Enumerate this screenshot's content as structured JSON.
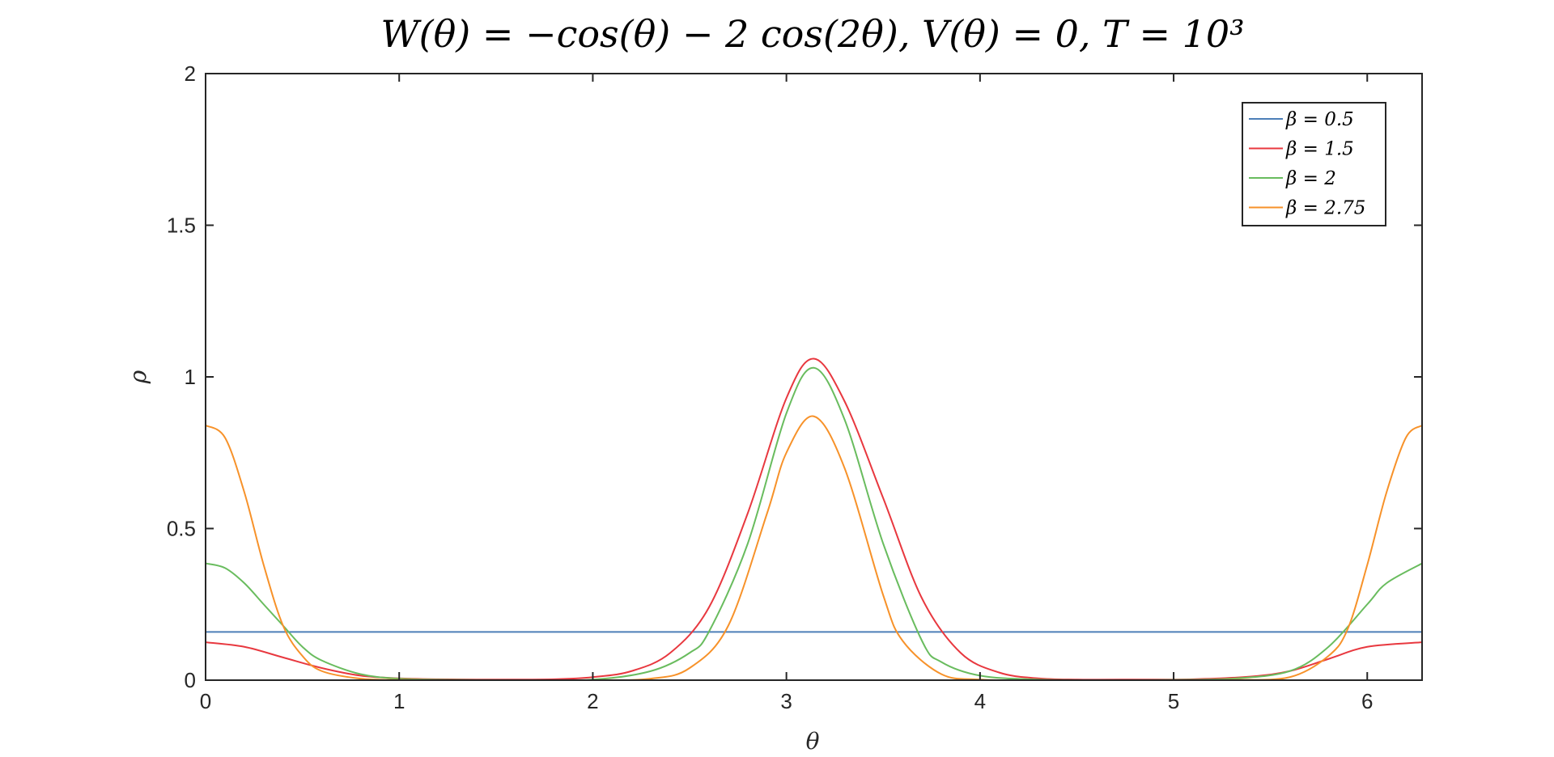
{
  "chart_data": {
    "type": "line",
    "title": "W(θ) = −cos(θ) − 2 cos(2θ), V(θ) = 0, T = 10³",
    "xlabel": "θ",
    "ylabel": "ρ",
    "xlim": [
      0,
      6.2832
    ],
    "ylim": [
      0,
      2
    ],
    "xticks": [
      {
        "value": 0,
        "label": "0"
      },
      {
        "value": 1,
        "label": "1"
      },
      {
        "value": 2,
        "label": "2"
      },
      {
        "value": 3,
        "label": "3"
      },
      {
        "value": 4,
        "label": "4"
      },
      {
        "value": 5,
        "label": "5"
      },
      {
        "value": 6,
        "label": "6"
      }
    ],
    "yticks": [
      {
        "value": 0,
        "label": "0"
      },
      {
        "value": 0.5,
        "label": "0.5"
      },
      {
        "value": 1,
        "label": "1"
      },
      {
        "value": 1.5,
        "label": "1.5"
      },
      {
        "value": 2,
        "label": "2"
      }
    ],
    "grid": false,
    "box": true,
    "legend_position": "top-right",
    "series": [
      {
        "name": "β = 0.5",
        "color": "#4d7fb8",
        "x": [
          0,
          6.2832
        ],
        "y": [
          0.159,
          0.159
        ]
      },
      {
        "name": "β = 1.5",
        "color": "#e8383f",
        "x": [
          0,
          0.2,
          0.4,
          0.6,
          0.8,
          1.0,
          1.2,
          1.5,
          1.8,
          2.0,
          2.2,
          2.4,
          2.6,
          2.8,
          3.0,
          3.1416,
          3.3,
          3.5,
          3.7,
          3.9,
          4.1,
          4.3,
          4.5,
          4.8,
          5.1,
          5.4,
          5.6,
          5.8,
          6.0,
          6.2832
        ],
        "y": [
          0.125,
          0.11,
          0.075,
          0.04,
          0.015,
          0.006,
          0.003,
          0.002,
          0.003,
          0.01,
          0.03,
          0.09,
          0.24,
          0.55,
          0.93,
          1.06,
          0.92,
          0.6,
          0.27,
          0.09,
          0.025,
          0.006,
          0.002,
          0.002,
          0.003,
          0.012,
          0.03,
          0.07,
          0.11,
          0.125
        ]
      },
      {
        "name": "β = 2",
        "color": "#69bc5e",
        "x": [
          0,
          0.1,
          0.2,
          0.3,
          0.4,
          0.5,
          0.6,
          0.8,
          1.0,
          1.3,
          1.6,
          2.0,
          2.3,
          2.5,
          2.6,
          2.8,
          3.0,
          3.1416,
          3.3,
          3.5,
          3.7,
          3.8,
          4.0,
          4.3,
          4.7,
          5.0,
          5.3,
          5.6,
          5.8,
          6.0,
          6.1,
          6.2832
        ],
        "y": [
          0.385,
          0.37,
          0.32,
          0.25,
          0.18,
          0.11,
          0.065,
          0.02,
          0.005,
          0.001,
          0.0,
          0.002,
          0.03,
          0.09,
          0.16,
          0.45,
          0.88,
          1.03,
          0.86,
          0.45,
          0.13,
          0.06,
          0.015,
          0.002,
          0.0,
          0.001,
          0.005,
          0.03,
          0.11,
          0.25,
          0.32,
          0.385
        ]
      },
      {
        "name": "β = 2.75",
        "color": "#f7922a",
        "x": [
          0,
          0.1,
          0.2,
          0.3,
          0.4,
          0.5,
          0.6,
          0.8,
          1.0,
          1.3,
          1.6,
          2.0,
          2.3,
          2.5,
          2.7,
          2.9,
          3.0,
          3.1416,
          3.3,
          3.5,
          3.6,
          3.8,
          4.0,
          4.3,
          4.7,
          5.0,
          5.3,
          5.6,
          5.8,
          5.9,
          6.0,
          6.1,
          6.2,
          6.2832
        ],
        "y": [
          0.84,
          0.8,
          0.62,
          0.38,
          0.18,
          0.08,
          0.03,
          0.005,
          0.001,
          0.0,
          0.0,
          0.0,
          0.005,
          0.04,
          0.18,
          0.55,
          0.75,
          0.87,
          0.7,
          0.28,
          0.13,
          0.02,
          0.002,
          0.0,
          0.0,
          0.0,
          0.001,
          0.01,
          0.08,
          0.17,
          0.38,
          0.62,
          0.8,
          0.84
        ]
      }
    ]
  }
}
